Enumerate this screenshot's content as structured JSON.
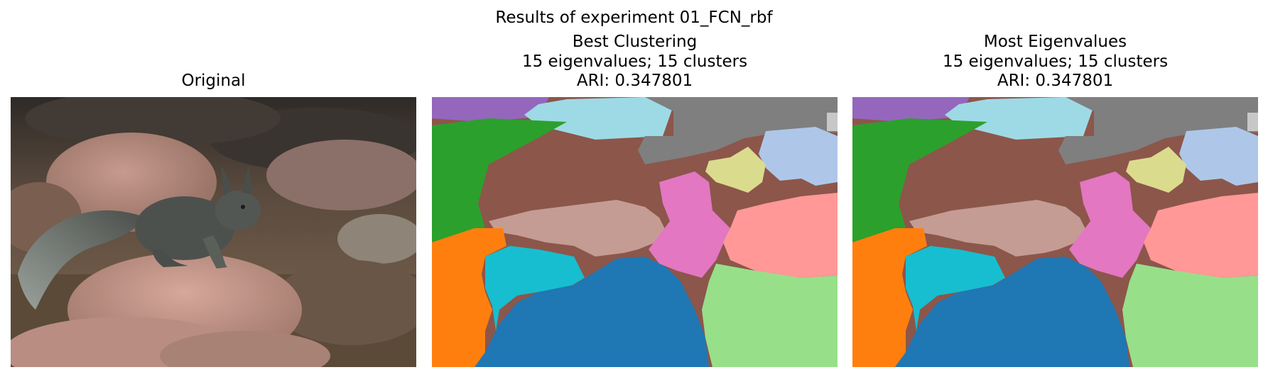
{
  "figure": {
    "suptitle": "Results of experiment 01_FCN_rbf"
  },
  "panels": [
    {
      "id": "original",
      "title_lines": [
        "Original"
      ],
      "image": "photo-squirrel-on-rock"
    },
    {
      "id": "best",
      "title_lines": [
        "Best Clustering",
        "15 eigenvalues; 15 clusters",
        "ARI: 0.347801"
      ],
      "image": "segmentation-map"
    },
    {
      "id": "most",
      "title_lines": [
        "Most Eigenvalues",
        "15 eigenvalues; 15 clusters",
        "ARI: 0.347801"
      ],
      "image": "segmentation-map"
    }
  ],
  "colors": {
    "blue": "#1f77b4",
    "orange": "#ff7f0e",
    "green": "#2ca02c",
    "brown": "#8c564b",
    "purple": "#9467bd",
    "pink": "#e377c2",
    "gray": "#7f7f7f",
    "light_blue": "#aec7e8",
    "light_green": "#98df8a",
    "salmon": "#ff9896",
    "tan": "#c49c94",
    "cyan": "#17becf",
    "light_cyan": "#9edae5",
    "khaki": "#dbdb8d",
    "light_gray": "#c7c7c7"
  }
}
